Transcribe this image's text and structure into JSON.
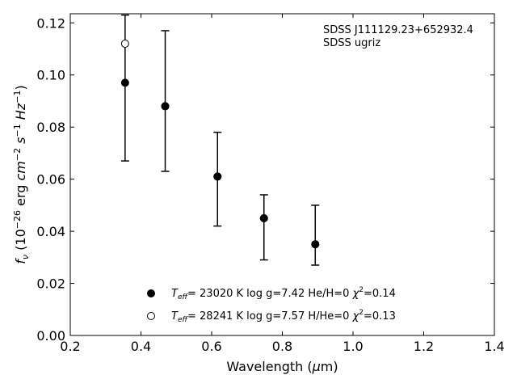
{
  "chart_data": {
    "type": "scatter",
    "xlabel": "Wavelength (μm)",
    "ylabel": "f_ν (10^-26 erg cm^-2 s^-1 Hz^-1)",
    "xlim": [
      0.2,
      1.4
    ],
    "ylim": [
      0.0,
      0.1235
    ],
    "xticks": [
      "0.2",
      "0.4",
      "0.6",
      "0.8",
      "1.0",
      "1.2",
      "1.4"
    ],
    "yticks": [
      "0.00",
      "0.02",
      "0.04",
      "0.06",
      "0.08",
      "0.10",
      "0.12"
    ],
    "annotation": [
      "SDSS J111129.23+652932.4",
      "SDSS ugriz"
    ],
    "observed": {
      "x": [
        0.3551,
        0.4686,
        0.6166,
        0.748,
        0.8932
      ],
      "y": [
        0.097,
        0.088,
        0.061,
        0.045,
        0.035
      ],
      "yerr_low": [
        0.067,
        0.063,
        0.042,
        0.029,
        0.027
      ],
      "yerr_high": [
        0.123,
        0.117,
        0.078,
        0.054,
        0.05
      ]
    },
    "series": [
      {
        "name": "T_eff= 23020 K  log g=7.42  He/H=0  χ2=0.14",
        "marker": "filled",
        "x": [
          0.3551,
          0.4686,
          0.6166,
          0.748,
          0.8932
        ],
        "y": [
          0.097,
          0.088,
          0.061,
          0.045,
          0.035
        ]
      },
      {
        "name": "T_eff= 28241 K  log g=7.57  H/He=0  χ2=0.13",
        "marker": "open",
        "x": [
          0.3551,
          0.4686,
          0.6166,
          0.748,
          0.8932
        ],
        "y": [
          0.112,
          0.088,
          0.061,
          0.045,
          0.035
        ]
      }
    ]
  }
}
